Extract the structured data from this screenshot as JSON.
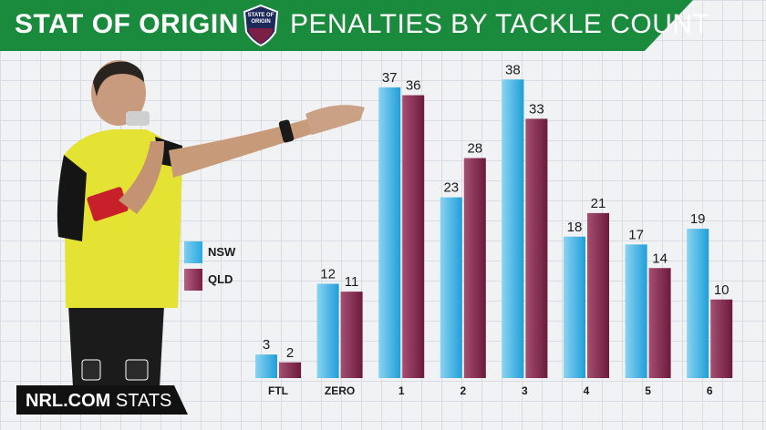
{
  "header": {
    "title_left": "STAT OF ORIGIN",
    "title_right": "PENALTIES BY TACKLE COUNT",
    "logo_lines": [
      "STATE OF",
      "ORIGIN"
    ]
  },
  "colors": {
    "nsw": "#2aa9e0",
    "qld": "#7b1f46",
    "banner": "#1a8a3c"
  },
  "footer": {
    "brand": "NRL.COM",
    "suffix": " STATS"
  },
  "chart_data": {
    "type": "bar",
    "title": "PENALTIES BY TACKLE COUNT",
    "xlabel": "",
    "ylabel": "",
    "categories": [
      "FTL",
      "ZERO",
      "1",
      "2",
      "3",
      "4",
      "5",
      "6"
    ],
    "series": [
      {
        "name": "NSW",
        "values": [
          3,
          12,
          37,
          23,
          38,
          18,
          17,
          19
        ]
      },
      {
        "name": "QLD",
        "values": [
          2,
          11,
          36,
          28,
          33,
          21,
          14,
          10
        ]
      }
    ],
    "ylim": [
      0,
      40
    ],
    "grid": true,
    "legend": "left"
  }
}
